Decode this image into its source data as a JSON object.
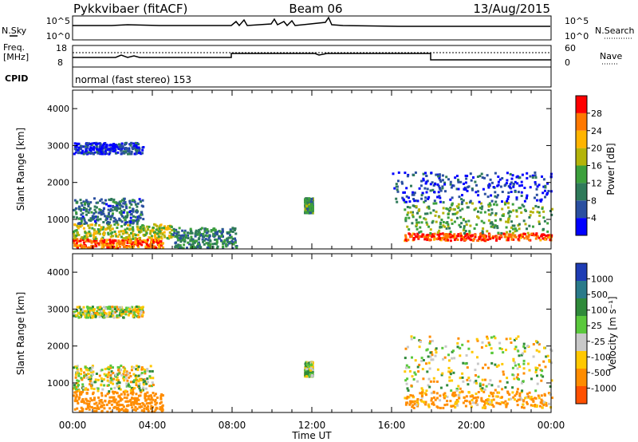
{
  "header": {
    "station": "Pykkvibaer (fitACF)",
    "beam": "Beam 06",
    "date": "13/Aug/2015"
  },
  "noise_panel": {
    "left_label": "N.Sky",
    "left_ticks": [
      "10^5",
      "10^0"
    ],
    "right_label": "N.Search",
    "right_ticks": [
      "10^5",
      "10^0"
    ]
  },
  "freq_panel": {
    "left_label_1": "Freq.",
    "left_label_2": "[MHz]",
    "left_ticks": [
      "18",
      "8"
    ],
    "right_label": "Nave",
    "right_ticks": [
      "60",
      "0"
    ]
  },
  "cpid_panel": {
    "left_label": "CPID",
    "text": "normal (fast stereo) 153"
  },
  "colors": {
    "power_scale": [
      "#0000ff",
      "#2a4fa0",
      "#2f7a5a",
      "#3ca03c",
      "#b4b40a",
      "#ffb400",
      "#ff7800",
      "#ff0000"
    ],
    "velocity_scale": [
      "#1e3cb4",
      "#2a7a8a",
      "#2f8a3a",
      "#5ac83c",
      "#c8c8c8",
      "#ffc800",
      "#ff8c00",
      "#ff5000",
      "#ff0000"
    ]
  },
  "chart_data": [
    {
      "type": "heatmap",
      "name": "power",
      "ylabel": "Slant Range [km]",
      "yticks": [
        "1000",
        "2000",
        "3000",
        "4000"
      ],
      "ylim": [
        200,
        4500
      ],
      "xticks": [
        "00:00",
        "04:00",
        "08:00",
        "12:00",
        "16:00",
        "20:00",
        "00:00"
      ],
      "colorbar_label": "Power [dB]",
      "colorbar_ticks": [
        "4",
        "8",
        "12",
        "16",
        "20",
        "24",
        "28"
      ],
      "colorbar_range": [
        0,
        32
      ],
      "echo_regions": [
        {
          "t": [
            0.0,
            4.5
          ],
          "range": [
            250,
            500
          ],
          "value": 27
        },
        {
          "t": [
            0.0,
            5.0
          ],
          "range": [
            500,
            900
          ],
          "value": 18
        },
        {
          "t": [
            0.0,
            3.5
          ],
          "range": [
            900,
            1600
          ],
          "value": 8
        },
        {
          "t": [
            5.0,
            8.2
          ],
          "range": [
            250,
            800
          ],
          "value": 10
        },
        {
          "t": [
            0.0,
            3.5
          ],
          "range": [
            2800,
            3100
          ],
          "value": 4
        },
        {
          "t": [
            11.6,
            12.0
          ],
          "range": [
            1200,
            1600
          ],
          "value": 12
        },
        {
          "t": [
            16.6,
            24.0
          ],
          "range": [
            450,
            650
          ],
          "value": 28
        },
        {
          "t": [
            16.6,
            24.0
          ],
          "range": [
            650,
            1500
          ],
          "value": 14
        },
        {
          "t": [
            16.0,
            24.0
          ],
          "range": [
            1500,
            2300
          ],
          "value": 5
        }
      ]
    },
    {
      "type": "heatmap",
      "name": "velocity",
      "ylabel": "Slant Range [km]",
      "yticks": [
        "1000",
        "2000",
        "3000",
        "4000"
      ],
      "ylim": [
        200,
        4500
      ],
      "xticks": [
        "00:00",
        "04:00",
        "08:00",
        "12:00",
        "16:00",
        "20:00",
        "00:00"
      ],
      "xlabel": "Time UT",
      "colorbar_label": "Velocity [m s⁻¹]",
      "colorbar_ticks": [
        "1000",
        "500",
        "100",
        "25",
        "-25",
        "-100",
        "-500",
        "-1000"
      ],
      "echo_regions": [
        {
          "t": [
            0.0,
            4.5
          ],
          "range": [
            250,
            800
          ],
          "value": -300
        },
        {
          "t": [
            0.0,
            4.0
          ],
          "range": [
            800,
            1500
          ],
          "value": 0
        },
        {
          "t": [
            0.0,
            3.5
          ],
          "range": [
            2800,
            3100
          ],
          "value": 0
        },
        {
          "t": [
            11.6,
            12.0
          ],
          "range": [
            1200,
            1600
          ],
          "value": 60
        },
        {
          "t": [
            16.6,
            24.0
          ],
          "range": [
            350,
            800
          ],
          "value": -150
        },
        {
          "t": [
            16.6,
            24.0
          ],
          "range": [
            800,
            2300
          ],
          "value": 0
        }
      ]
    }
  ],
  "axis_labels": {
    "xlabel": "Time UT"
  }
}
